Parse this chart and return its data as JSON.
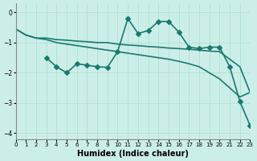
{
  "xlabel": "Humidex (Indice chaleur)",
  "ylabel": "",
  "xlim": [
    0,
    23
  ],
  "ylim": [
    -4.2,
    0.3
  ],
  "yticks": [
    0,
    -1,
    -2,
    -3,
    -4
  ],
  "xticks": [
    0,
    1,
    2,
    3,
    4,
    5,
    6,
    7,
    8,
    9,
    10,
    11,
    12,
    13,
    14,
    15,
    16,
    17,
    18,
    19,
    20,
    21,
    22,
    23
  ],
  "bg_color": "#cceee8",
  "line_color": "#1a7a6e",
  "grid_color": "#aaddcc",
  "line1_x": [
    0,
    1,
    2,
    3,
    4,
    5,
    6,
    7,
    8,
    9,
    10,
    11,
    12,
    13,
    14,
    15,
    16,
    17,
    18,
    19,
    20,
    21,
    22,
    23
  ],
  "line1_y": [
    -0.55,
    -0.75,
    -0.85,
    -0.85,
    -0.9,
    -0.92,
    -0.95,
    -0.97,
    -1.0,
    -1.0,
    -1.05,
    -1.08,
    -1.1,
    -1.13,
    -1.15,
    -1.18,
    -1.2,
    -1.22,
    -1.25,
    -1.28,
    -1.3,
    -1.55,
    -1.8,
    -2.65
  ],
  "line2_x": [
    0,
    1,
    2,
    3,
    4,
    5,
    6,
    7,
    8,
    9,
    10,
    11,
    12,
    13,
    14,
    15,
    16,
    17,
    18,
    19,
    20,
    21,
    22,
    23
  ],
  "line2_y": [
    -0.55,
    -0.75,
    -0.85,
    -0.9,
    -1.0,
    -1.05,
    -1.1,
    -1.15,
    -1.2,
    -1.25,
    -1.3,
    -1.35,
    -1.4,
    -1.45,
    -1.5,
    -1.55,
    -1.62,
    -1.7,
    -1.8,
    -2.0,
    -2.2,
    -2.5,
    -2.8,
    -2.65
  ],
  "line3_x": [
    3,
    4,
    5,
    6,
    7,
    8,
    9,
    10,
    11,
    12,
    13,
    14,
    15,
    16,
    17,
    18,
    19,
    20,
    21,
    22,
    23
  ],
  "line3_y": [
    -1.5,
    -1.8,
    -2.0,
    -1.7,
    -1.75,
    -1.8,
    -1.82,
    -1.3,
    -0.2,
    -0.7,
    -0.6,
    -0.3,
    -0.3,
    -0.65,
    -1.15,
    -1.2,
    -1.15,
    -1.15,
    -1.8,
    -2.95,
    -3.75
  ],
  "marker": "D",
  "markersize": 3,
  "linewidth": 1.2
}
